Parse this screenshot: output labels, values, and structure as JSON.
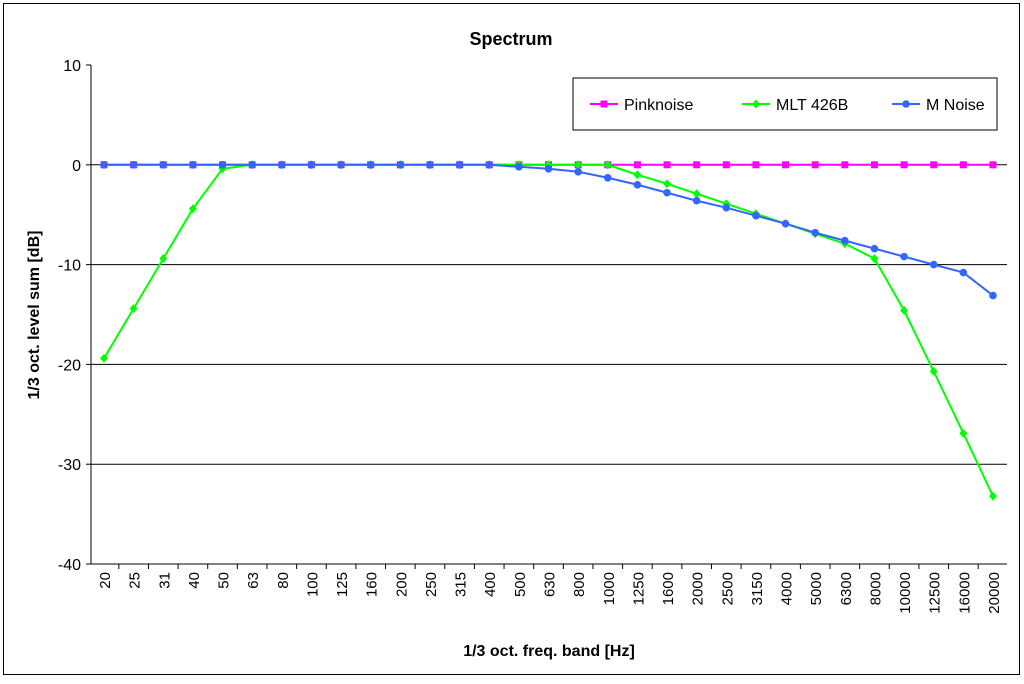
{
  "chart_data": {
    "type": "line",
    "title": "Spectrum",
    "xlabel": "1/3 oct. freq. band [Hz]",
    "ylabel": "1/3 oct. level sum [dB]",
    "ylim": [
      -40,
      10
    ],
    "yticks": [
      10,
      0,
      -10,
      -20,
      -30,
      -40
    ],
    "grid": true,
    "legend_position": "top-right",
    "categories": [
      "20",
      "25",
      "31",
      "40",
      "50",
      "63",
      "80",
      "100",
      "125",
      "160",
      "200",
      "250",
      "315",
      "400",
      "500",
      "630",
      "800",
      "1000",
      "1250",
      "1600",
      "2000",
      "2500",
      "3150",
      "4000",
      "5000",
      "6300",
      "8000",
      "10000",
      "12500",
      "16000",
      "20000"
    ],
    "series": [
      {
        "name": "Pinknoise",
        "color": "#ff00ff",
        "marker": "square",
        "values": [
          0,
          0,
          0,
          0,
          0,
          0,
          0,
          0,
          0,
          0,
          0,
          0,
          0,
          0,
          0,
          0,
          0,
          0,
          0,
          0,
          0,
          0,
          0,
          0,
          0,
          0,
          0,
          0,
          0,
          0,
          0
        ]
      },
      {
        "name": "MLT 426B",
        "color": "#00ff00",
        "marker": "diamond",
        "values": [
          -19.4,
          -14.4,
          -9.4,
          -4.4,
          -0.4,
          0,
          0,
          0,
          0,
          0,
          0,
          0,
          0,
          0,
          0,
          0,
          0,
          0,
          -1.0,
          -1.9,
          -2.9,
          -3.9,
          -4.9,
          -5.9,
          -6.9,
          -7.9,
          -9.4,
          -14.6,
          -20.7,
          -26.9,
          -33.2
        ]
      },
      {
        "name": "M Noise",
        "color": "#3366ff",
        "marker": "circle",
        "values": [
          0,
          0,
          0,
          0,
          0,
          0,
          0,
          0,
          0,
          0,
          0,
          0,
          0,
          0,
          -0.2,
          -0.4,
          -0.7,
          -1.3,
          -2.0,
          -2.8,
          -3.6,
          -4.3,
          -5.1,
          -5.9,
          -6.8,
          -7.6,
          -8.4,
          -9.2,
          -10.0,
          -10.8,
          -13.1
        ]
      }
    ]
  }
}
